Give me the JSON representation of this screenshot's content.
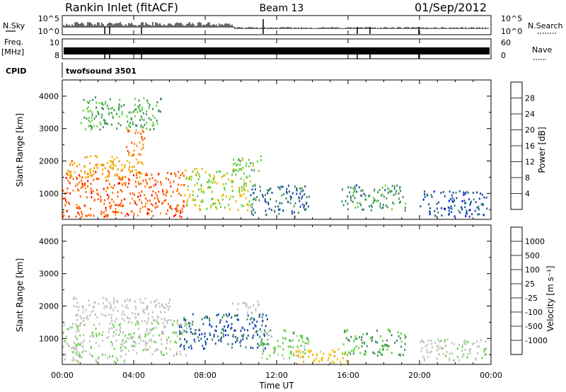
{
  "header": {
    "title": "Rankin Inlet (fitACF)",
    "beam": "Beam 13",
    "date": "01/Sep/2012"
  },
  "top_panels": {
    "nsky_label": "N.Sky",
    "nsky_ticks": [
      "10^5",
      "10^0"
    ],
    "nsearch_label": "N.Search",
    "nsearch_ticks": [
      "10^5",
      "10^0"
    ],
    "freq_label": "Freq.",
    "freq_unit": "[MHz]",
    "freq_ticks": [
      "10",
      "8"
    ],
    "nave_label": "Nave",
    "nave_ticks": [
      "60",
      "0"
    ],
    "cpid_label": "CPID",
    "cpid_value": "twofsound 3501"
  },
  "time_axis": {
    "label": "Time UT",
    "ticks": [
      "00:00",
      "04:00",
      "08:00",
      "12:00",
      "16:00",
      "20:00",
      "00:00"
    ]
  },
  "colors": {
    "power_scale": [
      "#0000ff",
      "#1a52a0",
      "#3e8e5c",
      "#5fd23c",
      "#e8b800",
      "#ff8c00",
      "#ff5a00",
      "#ff0000"
    ],
    "velocity_scale": [
      "#ff0000",
      "#ff6a00",
      "#ffa500",
      "#f2c100",
      "#c0c0c0",
      "#c0c0c0",
      "#5fd23c",
      "#3e8e5c",
      "#1a52a0",
      "#1a2fd0"
    ]
  },
  "chart_data": [
    {
      "type": "heatmap",
      "name": "power",
      "xlabel": "",
      "ylabel": "Slant Range [km]",
      "xlim": [
        0,
        24
      ],
      "ylim": [
        200,
        4500
      ],
      "yticks": [
        "1000",
        "2000",
        "3000",
        "4000"
      ],
      "colorbar_label": "Power [dB]",
      "colorbar_ticks": [
        "4",
        "8",
        "12",
        "16",
        "20",
        "24",
        "28"
      ],
      "colorbar_range": [
        0,
        32
      ],
      "regions": [
        {
          "t0": 0.0,
          "t1": 6.8,
          "r0": 300,
          "r1": 1700,
          "value": 26
        },
        {
          "t0": 0.2,
          "t1": 4.5,
          "r0": 1500,
          "r1": 2200,
          "value": 20
        },
        {
          "t0": 3.5,
          "t1": 4.6,
          "r0": 2200,
          "r1": 3000,
          "value": 24
        },
        {
          "t0": 1.0,
          "t1": 5.5,
          "r0": 3000,
          "r1": 4000,
          "value": 12
        },
        {
          "t0": 6.8,
          "t1": 10.5,
          "r0": 500,
          "r1": 1800,
          "value": 16
        },
        {
          "t0": 9.5,
          "t1": 11.2,
          "r0": 1700,
          "r1": 2200,
          "value": 14
        },
        {
          "t0": 10.5,
          "t1": 13.8,
          "r0": 300,
          "r1": 1300,
          "value": 8
        },
        {
          "t0": 15.6,
          "t1": 19.2,
          "r0": 500,
          "r1": 1300,
          "value": 10
        },
        {
          "t0": 20.0,
          "t1": 23.8,
          "r0": 300,
          "r1": 1100,
          "value": 6
        }
      ]
    },
    {
      "type": "heatmap",
      "name": "velocity",
      "xlabel": "Time UT",
      "ylabel": "Slant Range [km]",
      "xlim": [
        0,
        24
      ],
      "ylim": [
        200,
        4500
      ],
      "yticks": [
        "1000",
        "2000",
        "3000",
        "4000"
      ],
      "colorbar_label": "Velocity [m s⁻¹]",
      "colorbar_ticks": [
        "-1000",
        "-500",
        "-100",
        "-25",
        "25",
        "100",
        "500",
        "1000"
      ],
      "colorbar_range": [
        -1200,
        1200
      ],
      "regions": [
        {
          "t0": 0.0,
          "t1": 3.5,
          "r0": 300,
          "r1": 1500,
          "value": 150
        },
        {
          "t0": 0.5,
          "t1": 6.0,
          "r0": 1500,
          "r1": 2300,
          "value": 0
        },
        {
          "t0": 3.5,
          "t1": 7.0,
          "r0": 500,
          "r1": 1600,
          "value": 200
        },
        {
          "t0": 6.5,
          "t1": 11.5,
          "r0": 700,
          "r1": 1800,
          "value": 800
        },
        {
          "t0": 9.5,
          "t1": 11.0,
          "r0": 1800,
          "r1": 2200,
          "value": 0
        },
        {
          "t0": 11.0,
          "t1": 13.8,
          "r0": 400,
          "r1": 1300,
          "value": 300
        },
        {
          "t0": 13.0,
          "t1": 16.0,
          "r0": 200,
          "r1": 700,
          "value": -400
        },
        {
          "t0": 15.6,
          "t1": 19.2,
          "r0": 500,
          "r1": 1300,
          "value": 500
        },
        {
          "t0": 20.0,
          "t1": 23.8,
          "r0": 300,
          "r1": 1000,
          "value": 100
        }
      ]
    }
  ]
}
